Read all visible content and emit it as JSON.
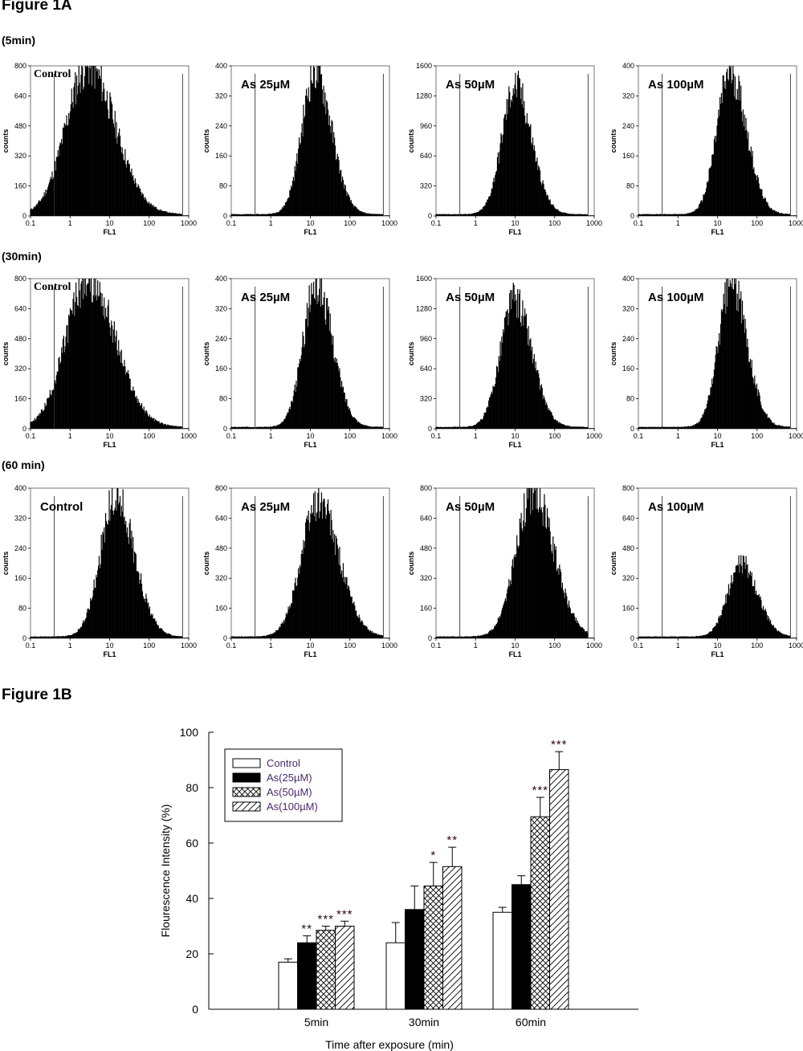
{
  "figure_1a": {
    "title": "Figure 1A",
    "rows": [
      {
        "time_label": "(5min)",
        "panels": [
          {
            "label": "Control",
            "ymax": 800,
            "yticks": [
              0,
              160,
              320,
              480,
              640,
              800
            ],
            "peak_log": 0.45,
            "peak_count": 790,
            "sigma": 0.55,
            "label_style": "serif"
          },
          {
            "label": "As 25µM",
            "ymax": 400,
            "yticks": [
              0,
              80,
              160,
              240,
              320,
              400
            ],
            "peak_log": 1.12,
            "peak_count": 380,
            "sigma": 0.33,
            "label_style": "sans"
          },
          {
            "label": "As 50µM",
            "ymax": 1600,
            "yticks": [
              0,
              320,
              640,
              960,
              1280,
              1600
            ],
            "peak_log": 1.0,
            "peak_count": 1360,
            "sigma": 0.33,
            "label_style": "sans"
          },
          {
            "label": "As 100µM",
            "ymax": 400,
            "yticks": [
              0,
              80,
              160,
              240,
              320,
              400
            ],
            "peak_log": 1.32,
            "peak_count": 380,
            "sigma": 0.33,
            "label_style": "sans"
          }
        ]
      },
      {
        "time_label": "(30min)",
        "panels": [
          {
            "label": "Control",
            "ymax": 800,
            "yticks": [
              0,
              160,
              320,
              480,
              640,
              800
            ],
            "peak_log": 0.45,
            "peak_count": 790,
            "sigma": 0.55,
            "label_style": "serif"
          },
          {
            "label": "As 25µM",
            "ymax": 400,
            "yticks": [
              0,
              80,
              160,
              240,
              320,
              400
            ],
            "peak_log": 1.15,
            "peak_count": 380,
            "sigma": 0.33,
            "label_style": "sans"
          },
          {
            "label": "As 50µM",
            "ymax": 1600,
            "yticks": [
              0,
              320,
              640,
              960,
              1280,
              1600
            ],
            "peak_log": 0.98,
            "peak_count": 1360,
            "sigma": 0.35,
            "label_style": "sans"
          },
          {
            "label": "As 100µM",
            "ymax": 400,
            "yticks": [
              0,
              80,
              160,
              240,
              320,
              400
            ],
            "peak_log": 1.35,
            "peak_count": 380,
            "sigma": 0.32,
            "label_style": "sans"
          }
        ]
      },
      {
        "time_label": "(60 min)",
        "panels": [
          {
            "label": "Control",
            "ymax": 400,
            "yticks": [
              0,
              80,
              160,
              240,
              320,
              400
            ],
            "peak_log": 1.15,
            "peak_count": 370,
            "sigma": 0.38,
            "label_style": "sans"
          },
          {
            "label": "As 25µM",
            "ymax": 800,
            "yticks": [
              0,
              160,
              320,
              480,
              640,
              800
            ],
            "peak_log": 1.2,
            "peak_count": 710,
            "sigma": 0.42,
            "label_style": "sans"
          },
          {
            "label": "As 50µM",
            "ymax": 800,
            "yticks": [
              0,
              160,
              320,
              480,
              640,
              800
            ],
            "peak_log": 1.45,
            "peak_count": 770,
            "sigma": 0.42,
            "label_style": "sans"
          },
          {
            "label": "As 100µM",
            "ymax": 800,
            "yticks": [
              0,
              160,
              320,
              480,
              640,
              800
            ],
            "peak_log": 1.6,
            "peak_count": 390,
            "sigma": 0.33,
            "label_style": "sans"
          }
        ]
      }
    ],
    "xlabel": "FL1",
    "ylabel": "counts",
    "xticks": [
      "0.1",
      "1",
      "10",
      "100",
      "1000"
    ],
    "gate_low": 0.4,
    "gate_high": 700
  },
  "figure_1b": {
    "title": "Figure 1B"
  },
  "chart_data": [
    {
      "type": "bar",
      "title": "",
      "xlabel": "Time after exposure (min)",
      "ylabel": "Flourescence Intensity (%)",
      "categories": [
        "5min",
        "30min",
        "60min"
      ],
      "ylim": [
        0,
        100
      ],
      "yticks": [
        0,
        20,
        40,
        60,
        80,
        100
      ],
      "legend_position": "top-left",
      "series": [
        {
          "name": "Control",
          "values": [
            17,
            24,
            35
          ],
          "errors": [
            1.2,
            7.3,
            1.8
          ],
          "stars": [
            "",
            "",
            ""
          ],
          "pattern": "white"
        },
        {
          "name": "As(25µM)",
          "values": [
            24,
            36,
            45
          ],
          "errors": [
            2.5,
            8.5,
            3.2
          ],
          "stars": [
            "**",
            "",
            ""
          ],
          "pattern": "black"
        },
        {
          "name": "As(50µM)",
          "values": [
            28.5,
            44.5,
            69.5
          ],
          "errors": [
            1.5,
            8.5,
            7
          ],
          "stars": [
            "***",
            "*",
            "***"
          ],
          "pattern": "crosshatch"
        },
        {
          "name": "As(100µM)",
          "values": [
            30,
            51.5,
            86.5
          ],
          "errors": [
            1.8,
            7,
            6.5
          ],
          "stars": [
            "***",
            "**",
            "***"
          ],
          "pattern": "diagonal"
        }
      ]
    }
  ]
}
